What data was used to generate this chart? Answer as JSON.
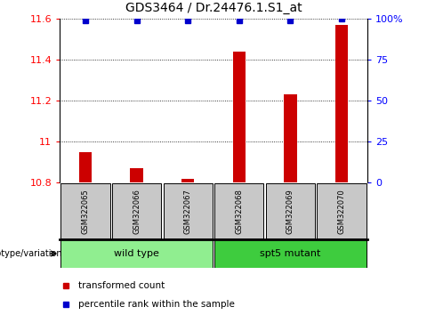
{
  "title": "GDS3464 / Dr.24476.1.S1_at",
  "samples": [
    "GSM322065",
    "GSM322066",
    "GSM322067",
    "GSM322068",
    "GSM322069",
    "GSM322070"
  ],
  "transformed_counts": [
    10.95,
    10.87,
    10.82,
    11.44,
    11.23,
    11.57
  ],
  "percentile_ranks": [
    99,
    99,
    99,
    99,
    99,
    100
  ],
  "ylim_left": [
    10.8,
    11.6
  ],
  "ylim_right": [
    0,
    100
  ],
  "yticks_left": [
    10.8,
    11.0,
    11.2,
    11.4,
    11.6
  ],
  "ytick_labels_left": [
    "10.8",
    "11",
    "11.2",
    "11.4",
    "11.6"
  ],
  "yticks_right": [
    0,
    25,
    50,
    75,
    100
  ],
  "ytick_labels_right": [
    "0",
    "25",
    "50",
    "75",
    "100%"
  ],
  "groups": [
    {
      "label": "wild type",
      "indices": [
        0,
        1,
        2
      ],
      "color": "#90EE90"
    },
    {
      "label": "spt5 mutant",
      "indices": [
        3,
        4,
        5
      ],
      "color": "#3ECC3E"
    }
  ],
  "group_label": "genotype/variation",
  "bar_color": "#CC0000",
  "percentile_color": "#0000CC",
  "bar_width": 0.25,
  "sample_box_color": "#C8C8C8",
  "legend_items": [
    {
      "label": "transformed count",
      "color": "#CC0000"
    },
    {
      "label": "percentile rank within the sample",
      "color": "#0000CC"
    }
  ]
}
